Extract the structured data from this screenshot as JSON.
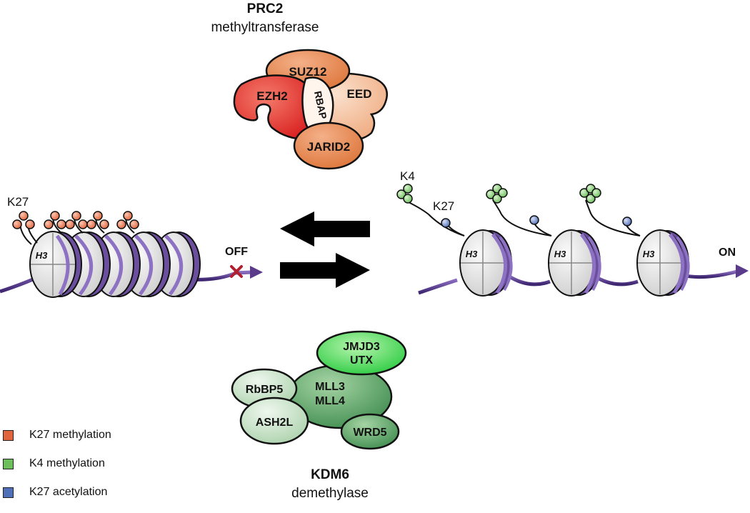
{
  "prc2": {
    "title": "PRC2",
    "subtitle": "methyltransferase",
    "subunits": {
      "suz12": "SUZ12",
      "ezh2": "EZH2",
      "rbap": "RBAP",
      "eed": "EED",
      "jarid2": "JARID2"
    }
  },
  "kdm6": {
    "title": "KDM6",
    "subtitle": "demethylase",
    "subunits": {
      "jmjd3_line1": "JMJD3",
      "jmjd3_line2": "UTX",
      "mll_line1": "MLL3",
      "mll_line2": "MLL4",
      "rbbp5": "RbBP5",
      "ash2l": "ASH2L",
      "wrd5": "WRD5"
    }
  },
  "off_state": {
    "mark_label": "K27",
    "histone_label": "H3",
    "status": "OFF"
  },
  "on_state": {
    "k4_label": "K4",
    "k27_label": "K27",
    "histone_labels": [
      "H3",
      "H3",
      "H3"
    ],
    "status": "ON"
  },
  "legend": [
    {
      "label": "K27 methylation",
      "color": "#e0643c"
    },
    {
      "label": "K4 methylation",
      "color": "#6cbf5a"
    },
    {
      "label": "K27 acetylation",
      "color": "#4f6fb8"
    }
  ],
  "colors": {
    "dna": "#5a3a8a",
    "nucleosome": "#e6e6e6",
    "ezh2": "#e8302a",
    "prc2_orange": "#e8834a",
    "prc2_light": "#f2b78f",
    "kdm6_green": "#4f9a5e",
    "kdm6_light": "#c9e3c9",
    "jmjd3": "#3fd84a",
    "arrow": "#000000",
    "block_x": "#b02030"
  }
}
